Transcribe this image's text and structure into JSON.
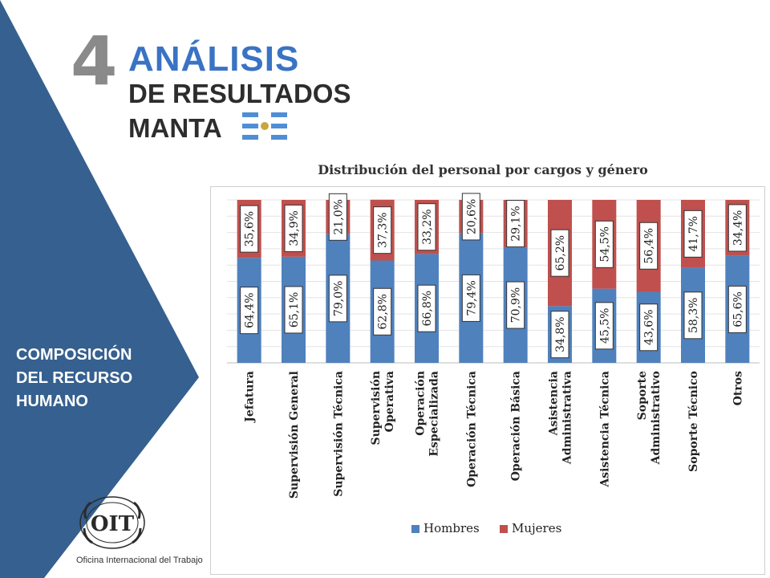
{
  "header": {
    "number": "4",
    "title_line1": "ANÁLISIS",
    "title_line2": "DE RESULTADOS",
    "title_line3": "MANTA"
  },
  "sidebar": {
    "section_lines": [
      "COMPOSICIÓN",
      "DEL RECURSO",
      "HUMANO"
    ]
  },
  "logo": {
    "text": "OIT",
    "caption": "Oficina Internacional del Trabajo"
  },
  "colors": {
    "panel_blue": "#35608f",
    "accent_blue": "#3a73c4",
    "hombres": "#4f81bd",
    "mujeres": "#c0504d",
    "flag_blue": "#4f8ed6"
  },
  "chart_data": {
    "type": "bar",
    "stacked": true,
    "title": "Distribución del personal por cargos y género",
    "ylim": [
      0,
      100
    ],
    "legend_position": "bottom",
    "categories": [
      [
        "Jefatura"
      ],
      [
        "Supervisión General"
      ],
      [
        "Supervisión Técnica"
      ],
      [
        "Supervisión",
        "Operativa"
      ],
      [
        "Operación",
        "Especializada"
      ],
      [
        "Operación Técnica"
      ],
      [
        "Operación Básica"
      ],
      [
        "Asistencia",
        "Administrativa"
      ],
      [
        "Asistencia Técnica"
      ],
      [
        "Soporte",
        "Administrativo"
      ],
      [
        "Soporte Técnico"
      ],
      [
        "Otros"
      ]
    ],
    "series": [
      {
        "name": "Hombres",
        "values": [
          64.4,
          65.1,
          79.0,
          62.8,
          66.8,
          79.4,
          70.9,
          34.8,
          45.5,
          43.6,
          58.3,
          65.6
        ],
        "labels": [
          "64,4%",
          "65,1%",
          "79,0%",
          "62,8%",
          "66,8%",
          "79,4%",
          "70,9%",
          "34,8%",
          "45,5%",
          "43,6%",
          "58,3%",
          "65,6%"
        ]
      },
      {
        "name": "Mujeres",
        "values": [
          35.6,
          34.9,
          21.0,
          37.3,
          33.2,
          20.6,
          29.1,
          65.2,
          54.5,
          56.4,
          41.7,
          34.4
        ],
        "labels": [
          "35,6%",
          "34,9%",
          "21,0%",
          "37,3%",
          "33,2%",
          "20,6%",
          "29,1%",
          "65,2%",
          "54,5%",
          "56,4%",
          "41,7%",
          "34,4%"
        ]
      }
    ]
  }
}
